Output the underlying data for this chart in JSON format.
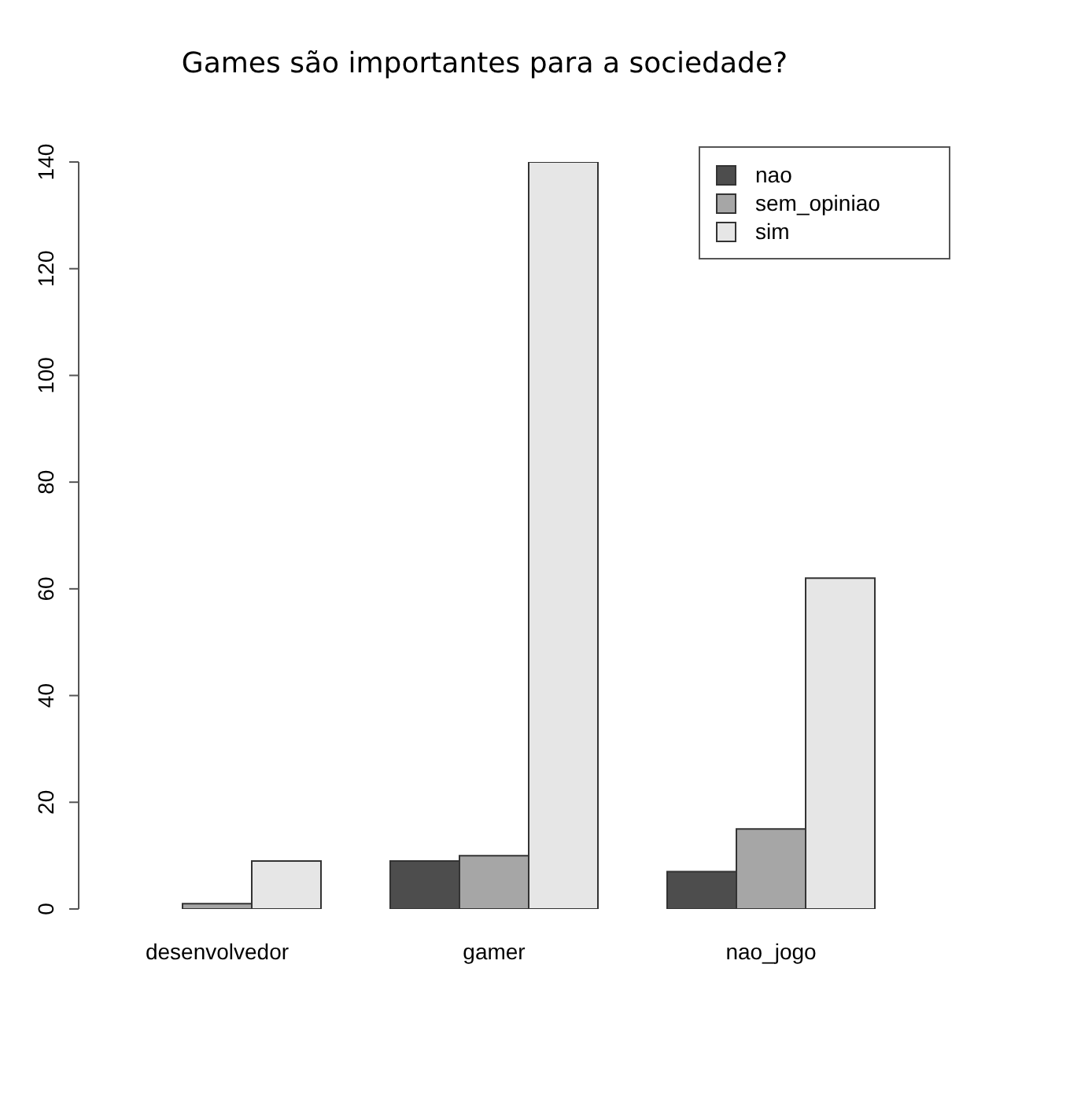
{
  "chart_data": {
    "type": "bar",
    "title": "Games são importantes para a sociedade?",
    "categories": [
      "desenvolvedor",
      "gamer",
      "nao_jogo"
    ],
    "series": [
      {
        "name": "nao",
        "color": "#4d4d4d",
        "values": [
          0,
          9,
          7
        ]
      },
      {
        "name": "sem_opiniao",
        "color": "#a6a6a6",
        "values": [
          1,
          10,
          15
        ]
      },
      {
        "name": "sim",
        "color": "#e6e6e6",
        "values": [
          9,
          140,
          62
        ]
      }
    ],
    "ylim": [
      0,
      140
    ],
    "yticks": [
      0,
      20,
      40,
      60,
      80,
      100,
      120,
      140
    ],
    "grid": false,
    "legend": "top right"
  }
}
